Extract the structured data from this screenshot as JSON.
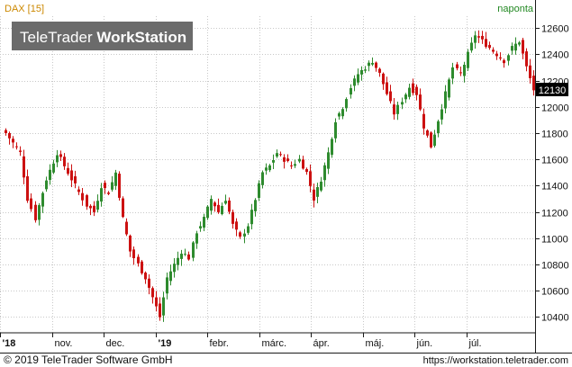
{
  "header": {
    "instrument": "DAX [15]",
    "interval": "naponta",
    "watermark_light": "TeleTrader ",
    "watermark_bold": "WorkStation"
  },
  "footer": {
    "copyright": "© 2019 TeleTrader Software GmbH",
    "url": "https://workstation.teletrader.com"
  },
  "colors": {
    "up": "#2e8b2e",
    "down": "#cc1111",
    "grid": "#c8c8c8",
    "frame": "#1a1a1a",
    "instrument_label": "#cc8800",
    "interval_label": "#228822"
  },
  "chart_data": {
    "type": "candlestick",
    "title": "DAX [15]",
    "interval": "naponta",
    "y_axis": {
      "position": "right",
      "ticks": [
        10400,
        10600,
        10800,
        11000,
        11200,
        11400,
        11600,
        11800,
        12000,
        12200,
        12400,
        12600
      ],
      "range": [
        10280,
        12690
      ]
    },
    "x_axis": {
      "ticks": [
        {
          "label": "'18",
          "month": 0
        },
        {
          "label": "nov.",
          "month": 1
        },
        {
          "label": "dec.",
          "month": 2
        },
        {
          "label": "'19",
          "month": 3
        },
        {
          "label": "febr.",
          "month": 4
        },
        {
          "label": "márc.",
          "month": 5
        },
        {
          "label": "ápr.",
          "month": 6
        },
        {
          "label": "máj.",
          "month": 7
        },
        {
          "label": "jún.",
          "month": 8
        },
        {
          "label": "júl.",
          "month": 9
        }
      ]
    },
    "last_price": 12130,
    "grid": true,
    "anchors": [
      [
        0,
        11800
      ],
      [
        4,
        11650
      ],
      [
        6,
        11300
      ],
      [
        8,
        11150
      ],
      [
        11,
        11450
      ],
      [
        14,
        11650
      ],
      [
        16,
        11550
      ],
      [
        19,
        11400
      ],
      [
        22,
        11250
      ],
      [
        24,
        11200
      ],
      [
        26,
        11400
      ],
      [
        28,
        11350
      ],
      [
        30,
        11500
      ],
      [
        32,
        11150
      ],
      [
        34,
        10900
      ],
      [
        36,
        10800
      ],
      [
        38,
        10700
      ],
      [
        40,
        10550
      ],
      [
        42,
        10400
      ],
      [
        44,
        10700
      ],
      [
        46,
        10800
      ],
      [
        48,
        10900
      ],
      [
        50,
        10850
      ],
      [
        52,
        11050
      ],
      [
        54,
        11150
      ],
      [
        56,
        11300
      ],
      [
        58,
        11200
      ],
      [
        60,
        11300
      ],
      [
        62,
        11100
      ],
      [
        64,
        11000
      ],
      [
        66,
        11100
      ],
      [
        68,
        11300
      ],
      [
        70,
        11500
      ],
      [
        72,
        11550
      ],
      [
        74,
        11650
      ],
      [
        76,
        11600
      ],
      [
        78,
        11550
      ],
      [
        80,
        11600
      ],
      [
        82,
        11500
      ],
      [
        84,
        11300
      ],
      [
        86,
        11450
      ],
      [
        88,
        11650
      ],
      [
        90,
        11900
      ],
      [
        92,
        12000
      ],
      [
        94,
        12150
      ],
      [
        96,
        12250
      ],
      [
        98,
        12300
      ],
      [
        100,
        12350
      ],
      [
        102,
        12250
      ],
      [
        104,
        12100
      ],
      [
        106,
        11950
      ],
      [
        108,
        12050
      ],
      [
        110,
        12150
      ],
      [
        112,
        12100
      ],
      [
        114,
        11850
      ],
      [
        116,
        11700
      ],
      [
        118,
        11900
      ],
      [
        120,
        12100
      ],
      [
        122,
        12300
      ],
      [
        124,
        12250
      ],
      [
        126,
        12400
      ],
      [
        128,
        12550
      ],
      [
        130,
        12500
      ],
      [
        132,
        12450
      ],
      [
        134,
        12400
      ],
      [
        136,
        12350
      ],
      [
        138,
        12450
      ],
      [
        140,
        12500
      ],
      [
        142,
        12300
      ],
      [
        144,
        12130
      ]
    ]
  }
}
